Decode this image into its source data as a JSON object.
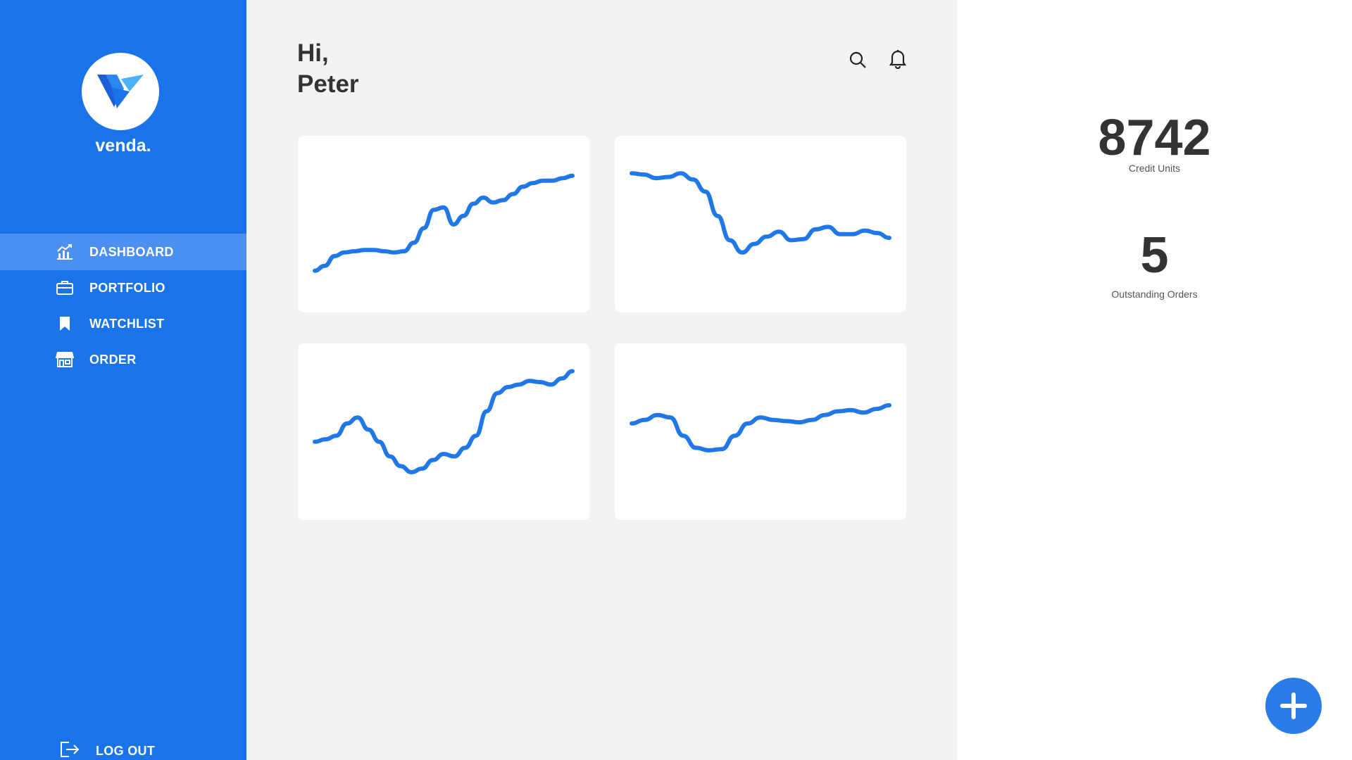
{
  "brand": {
    "name": "venda."
  },
  "nav": {
    "items": [
      {
        "label": "DASHBOARD",
        "icon": "chart-icon",
        "active": true
      },
      {
        "label": "PORTFOLIO",
        "icon": "briefcase-icon",
        "active": false
      },
      {
        "label": "WATCHLIST",
        "icon": "bookmark-icon",
        "active": false
      },
      {
        "label": "ORDER",
        "icon": "store-icon",
        "active": false
      }
    ],
    "logout_label": "LOG OUT"
  },
  "header": {
    "greeting_line1": "Hi,",
    "greeting_line2": "Peter"
  },
  "stats": {
    "credit_units": {
      "value": "8742",
      "label": "Credit Units"
    },
    "outstanding_orders": {
      "value": "5",
      "label": "Outstanding Orders"
    }
  },
  "colors": {
    "accent": "#1a73e8",
    "line": "#1f77e8"
  },
  "chart_data": [
    {
      "type": "line",
      "values": [
        10,
        14,
        22,
        25,
        26,
        27,
        27,
        26,
        25,
        26,
        33,
        45,
        60,
        62,
        48,
        55,
        65,
        70,
        66,
        68,
        73,
        79,
        82,
        84,
        84,
        86,
        88
      ]
    },
    {
      "type": "line",
      "values": [
        90,
        89,
        86,
        87,
        90,
        85,
        75,
        55,
        35,
        25,
        32,
        38,
        42,
        35,
        36,
        44,
        46,
        40,
        40,
        43,
        41,
        37
      ]
    },
    {
      "type": "line",
      "values": [
        40,
        42,
        45,
        55,
        60,
        50,
        40,
        28,
        20,
        15,
        18,
        25,
        30,
        28,
        35,
        45,
        65,
        80,
        85,
        87,
        90,
        89,
        87,
        92,
        98
      ]
    },
    {
      "type": "line",
      "values": [
        55,
        58,
        62,
        60,
        45,
        35,
        33,
        34,
        45,
        55,
        60,
        58,
        57,
        56,
        58,
        62,
        65,
        66,
        64,
        67,
        70
      ]
    }
  ]
}
